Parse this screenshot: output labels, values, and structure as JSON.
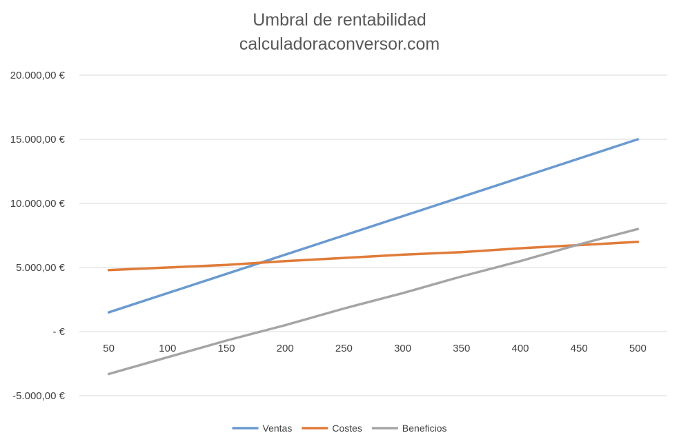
{
  "chart_data": {
    "type": "line",
    "title": "Umbral de rentabilidad",
    "subtitle": "calculadoraconversor.com",
    "xlabel": "",
    "ylabel": "",
    "categories": [
      50,
      100,
      150,
      200,
      250,
      300,
      350,
      400,
      450,
      500
    ],
    "series": [
      {
        "name": "Ventas",
        "color": "#6a9ad0",
        "values": [
          1500,
          3000,
          4500,
          6000,
          7500,
          9000,
          10500,
          12000,
          13500,
          15000
        ]
      },
      {
        "name": "Costes",
        "color": "#e07b39",
        "values": [
          4800,
          5000,
          5200,
          5500,
          5750,
          6000,
          6200,
          6500,
          6750,
          7000
        ]
      },
      {
        "name": "Beneficios",
        "color": "#a5a5a5",
        "values": [
          -3300,
          -2000,
          -700,
          500,
          1800,
          3000,
          4300,
          5500,
          6800,
          8000
        ]
      }
    ],
    "ylim": [
      -5000,
      20000
    ],
    "yticks": [
      20000,
      15000,
      10000,
      5000,
      0,
      -5000
    ],
    "ytick_labels": [
      "20.000,00 €",
      "15.000,00 €",
      "10.000,00 €",
      "5.000,00 €",
      "-  €",
      "-5.000,00 €"
    ],
    "grid": true,
    "legend_position": "bottom"
  }
}
